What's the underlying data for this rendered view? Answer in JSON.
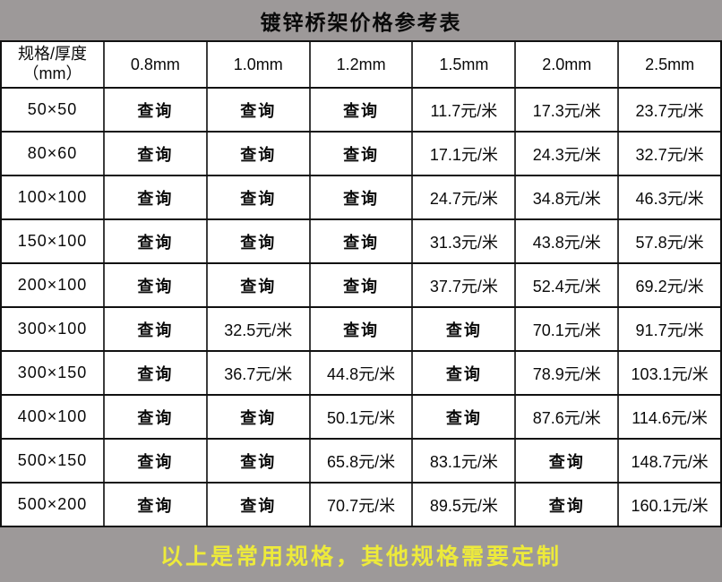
{
  "title": "镀锌桥架价格参考表",
  "corner_header": {
    "line1": "规格/厚度",
    "line2": "（mm）"
  },
  "thickness_headers": [
    "0.8mm",
    "1.0mm",
    "1.2mm",
    "1.5mm",
    "2.0mm",
    "2.5mm"
  ],
  "rows": [
    {
      "spec": "50×50",
      "cells": [
        {
          "text": "查询",
          "type": "query"
        },
        {
          "text": "查询",
          "type": "query"
        },
        {
          "text": "查询",
          "type": "query"
        },
        {
          "text": "11.7元/米",
          "type": "price"
        },
        {
          "text": "17.3元/米",
          "type": "price"
        },
        {
          "text": "23.7元/米",
          "type": "price"
        }
      ]
    },
    {
      "spec": "80×60",
      "cells": [
        {
          "text": "查询",
          "type": "query"
        },
        {
          "text": "查询",
          "type": "query"
        },
        {
          "text": "查询",
          "type": "query"
        },
        {
          "text": "17.1元/米",
          "type": "price"
        },
        {
          "text": "24.3元/米",
          "type": "price"
        },
        {
          "text": "32.7元/米",
          "type": "price"
        }
      ]
    },
    {
      "spec": "100×100",
      "cells": [
        {
          "text": "查询",
          "type": "query"
        },
        {
          "text": "查询",
          "type": "query"
        },
        {
          "text": "查询",
          "type": "query"
        },
        {
          "text": "24.7元/米",
          "type": "price"
        },
        {
          "text": "34.8元/米",
          "type": "price"
        },
        {
          "text": "46.3元/米",
          "type": "price"
        }
      ]
    },
    {
      "spec": "150×100",
      "cells": [
        {
          "text": "查询",
          "type": "query"
        },
        {
          "text": "查询",
          "type": "query"
        },
        {
          "text": "查询",
          "type": "query"
        },
        {
          "text": "31.3元/米",
          "type": "price"
        },
        {
          "text": "43.8元/米",
          "type": "price"
        },
        {
          "text": "57.8元/米",
          "type": "price"
        }
      ]
    },
    {
      "spec": "200×100",
      "cells": [
        {
          "text": "查询",
          "type": "query"
        },
        {
          "text": "查询",
          "type": "query"
        },
        {
          "text": "查询",
          "type": "query"
        },
        {
          "text": "37.7元/米",
          "type": "price"
        },
        {
          "text": "52.4元/米",
          "type": "price"
        },
        {
          "text": "69.2元/米",
          "type": "price"
        }
      ]
    },
    {
      "spec": "300×100",
      "cells": [
        {
          "text": "查询",
          "type": "query"
        },
        {
          "text": "32.5元/米",
          "type": "price"
        },
        {
          "text": "查询",
          "type": "query"
        },
        {
          "text": "查询",
          "type": "query"
        },
        {
          "text": "70.1元/米",
          "type": "price"
        },
        {
          "text": "91.7元/米",
          "type": "price"
        }
      ]
    },
    {
      "spec": "300×150",
      "cells": [
        {
          "text": "查询",
          "type": "query"
        },
        {
          "text": "36.7元/米",
          "type": "price"
        },
        {
          "text": "44.8元/米",
          "type": "price"
        },
        {
          "text": "查询",
          "type": "query"
        },
        {
          "text": "78.9元/米",
          "type": "price"
        },
        {
          "text": "103.1元/米",
          "type": "price"
        }
      ]
    },
    {
      "spec": "400×100",
      "cells": [
        {
          "text": "查询",
          "type": "query"
        },
        {
          "text": "查询",
          "type": "query"
        },
        {
          "text": "50.1元/米",
          "type": "price"
        },
        {
          "text": "查询",
          "type": "query"
        },
        {
          "text": "87.6元/米",
          "type": "price"
        },
        {
          "text": "114.6元/米",
          "type": "price"
        }
      ]
    },
    {
      "spec": "500×150",
      "cells": [
        {
          "text": "查询",
          "type": "query"
        },
        {
          "text": "查询",
          "type": "query"
        },
        {
          "text": "65.8元/米",
          "type": "price"
        },
        {
          "text": "83.1元/米",
          "type": "price"
        },
        {
          "text": "查询",
          "type": "query"
        },
        {
          "text": "148.7元/米",
          "type": "price"
        }
      ]
    },
    {
      "spec": "500×200",
      "cells": [
        {
          "text": "查询",
          "type": "query"
        },
        {
          "text": "查询",
          "type": "query"
        },
        {
          "text": "70.7元/米",
          "type": "price"
        },
        {
          "text": "89.5元/米",
          "type": "price"
        },
        {
          "text": "查询",
          "type": "query"
        },
        {
          "text": "160.1元/米",
          "type": "price"
        }
      ]
    }
  ],
  "footer": "以上是常用规格，其他规格需要定制",
  "colors": {
    "band_gray": "#9d9999",
    "price_red": "#fe0000",
    "footer_yellow": "#edea3b",
    "text_black": "#0a0a0a"
  }
}
